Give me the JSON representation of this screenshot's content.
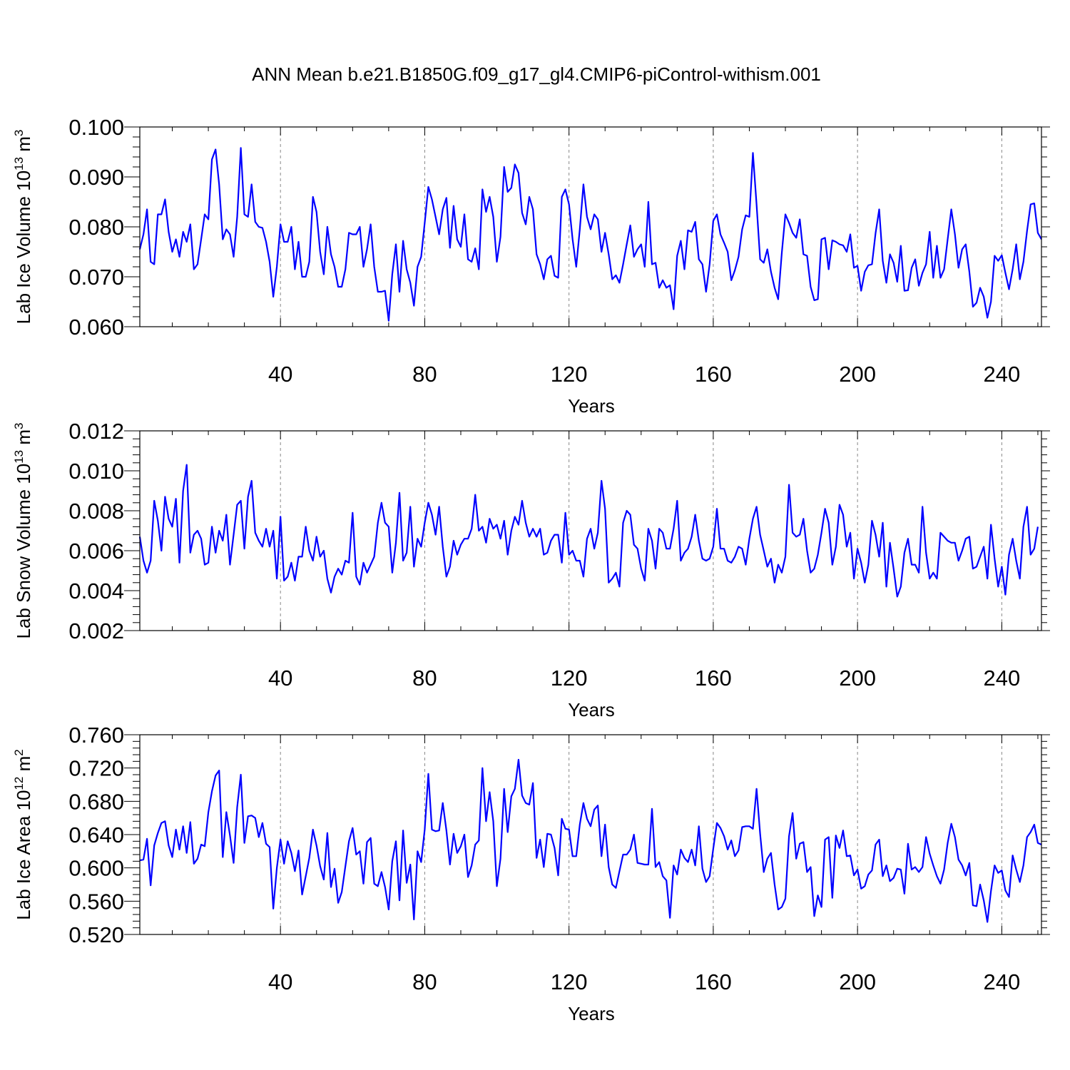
{
  "figure_title": "ANN Mean b.e21.B1850G.f09_g17_gl4.CMIP6-piControl-withism.001",
  "colors": {
    "series": "#0000ff",
    "grid": "#888888",
    "axes": "#000000"
  },
  "chart_data": [
    {
      "type": "line",
      "title": "",
      "xlabel": "Years",
      "ylabel": "Lab Ice Volume 10",
      "ylabel_exponent": "13",
      "ylabel_unit": " m",
      "ylabel_unit_exponent": "3",
      "xlim": [
        1,
        251
      ],
      "ylim": [
        0.06,
        0.1
      ],
      "x_ticks": [
        40,
        80,
        120,
        160,
        200,
        240
      ],
      "y_ticks": [
        "0.060",
        "0.070",
        "0.080",
        "0.090",
        "0.100"
      ],
      "grid": "vertical dashed at labeled x ticks",
      "x_start": 1,
      "series": [
        {
          "values": [
            0.0755,
            0.0785,
            0.0835,
            0.073,
            0.0725,
            0.0825,
            0.0825,
            0.0855,
            0.079,
            0.075,
            0.0775,
            0.074,
            0.079,
            0.077,
            0.0805,
            0.0715,
            0.0725,
            0.0775,
            0.0825,
            0.0815,
            0.0935,
            0.0955,
            0.0885,
            0.0775,
            0.0795,
            0.0785,
            0.074,
            0.082,
            0.0958,
            0.0825,
            0.082,
            0.0885,
            0.081,
            0.08,
            0.0798,
            0.077,
            0.073,
            0.066,
            0.072,
            0.0805,
            0.077,
            0.077,
            0.08,
            0.0715,
            0.077,
            0.07,
            0.07,
            0.073,
            0.086,
            0.083,
            0.075,
            0.0705,
            0.08,
            0.0745,
            0.072,
            0.068,
            0.068,
            0.0715,
            0.0788,
            0.0785,
            0.0785,
            0.08,
            0.072,
            0.0755,
            0.0805,
            0.072,
            0.067,
            0.067,
            0.0672,
            0.0612,
            0.0705,
            0.0765,
            0.067,
            0.0772,
            0.0715,
            0.0688,
            0.0642,
            0.072,
            0.074,
            0.0808,
            0.088,
            0.0855,
            0.082,
            0.0785,
            0.0835,
            0.0858,
            0.0758,
            0.0842,
            0.0775,
            0.076,
            0.0825,
            0.0735,
            0.073,
            0.0757,
            0.0715,
            0.0875,
            0.083,
            0.086,
            0.082,
            0.073,
            0.078,
            0.092,
            0.087,
            0.0878,
            0.0925,
            0.0908,
            0.0828,
            0.0805,
            0.086,
            0.0835,
            0.0745,
            0.0725,
            0.0695,
            0.0735,
            0.0742,
            0.0702,
            0.0698,
            0.086,
            0.0875,
            0.0845,
            0.0775,
            0.072,
            0.0795,
            0.0885,
            0.082,
            0.0795,
            0.0825,
            0.0815,
            0.075,
            0.0788,
            0.0745,
            0.0695,
            0.0703,
            0.0688,
            0.0725,
            0.0765,
            0.0803,
            0.074,
            0.0755,
            0.0765,
            0.072,
            0.085,
            0.0725,
            0.0728,
            0.0678,
            0.0693,
            0.0678,
            0.0683,
            0.0635,
            0.0742,
            0.0772,
            0.0715,
            0.0793,
            0.079,
            0.081,
            0.0735,
            0.0725,
            0.067,
            0.0725,
            0.0812,
            0.0825,
            0.0785,
            0.0768,
            0.075,
            0.0693,
            0.0713,
            0.074,
            0.0795,
            0.0823,
            0.082,
            0.0948,
            0.0845,
            0.0735,
            0.0728,
            0.0755,
            0.071,
            0.0678,
            0.0655,
            0.0748,
            0.0825,
            0.0808,
            0.0788,
            0.0778,
            0.0815,
            0.0745,
            0.0742,
            0.068,
            0.0653,
            0.0655,
            0.0775,
            0.0778,
            0.0715,
            0.0773,
            0.077,
            0.0765,
            0.0763,
            0.075,
            0.0785,
            0.0718,
            0.0722,
            0.0672,
            0.071,
            0.0723,
            0.0725,
            0.0787,
            0.0835,
            0.0732,
            0.0688,
            0.0745,
            0.0728,
            0.069,
            0.0762,
            0.0672,
            0.0673,
            0.0718,
            0.0735,
            0.0682,
            0.0708,
            0.0725,
            0.079,
            0.0698,
            0.0762,
            0.0698,
            0.0715,
            0.0775,
            0.0835,
            0.0785,
            0.0718,
            0.0755,
            0.0765,
            0.071,
            0.064,
            0.0648,
            0.0678,
            0.066,
            0.0618,
            0.065,
            0.0742,
            0.0732,
            0.0743,
            0.0708,
            0.0675,
            0.0715,
            0.0765,
            0.0695,
            0.073,
            0.0792,
            0.0845,
            0.0847,
            0.0788,
            0.0775
          ]
        }
      ]
    },
    {
      "type": "line",
      "title": "",
      "xlabel": "Years",
      "ylabel": "Lab Snow Volume 10",
      "ylabel_exponent": "13",
      "ylabel_unit": " m",
      "ylabel_unit_exponent": "3",
      "xlim": [
        1,
        251
      ],
      "ylim": [
        0.002,
        0.012
      ],
      "x_ticks": [
        40,
        80,
        120,
        160,
        200,
        240
      ],
      "y_ticks": [
        "0.002",
        "0.004",
        "0.006",
        "0.008",
        "0.010",
        "0.012"
      ],
      "grid": "vertical dashed at labeled x ticks",
      "x_start": 1,
      "series": [
        {
          "values": [
            0.0067,
            0.0055,
            0.0049,
            0.0055,
            0.0085,
            0.0075,
            0.006,
            0.0087,
            0.0076,
            0.0072,
            0.0086,
            0.0054,
            0.009,
            0.0103,
            0.0059,
            0.0068,
            0.007,
            0.0066,
            0.0053,
            0.0054,
            0.0072,
            0.0059,
            0.007,
            0.0065,
            0.0078,
            0.0053,
            0.0068,
            0.0083,
            0.0085,
            0.0061,
            0.0087,
            0.0095,
            0.0069,
            0.0065,
            0.0062,
            0.0071,
            0.0062,
            0.007,
            0.0046,
            0.0077,
            0.0045,
            0.0047,
            0.0054,
            0.0045,
            0.0057,
            0.0057,
            0.0072,
            0.006,
            0.0055,
            0.0067,
            0.0057,
            0.006,
            0.0046,
            0.0039,
            0.0047,
            0.0051,
            0.0048,
            0.0055,
            0.0054,
            0.0079,
            0.0047,
            0.0043,
            0.0054,
            0.0049,
            0.0053,
            0.0057,
            0.0074,
            0.0084,
            0.0074,
            0.0072,
            0.0049,
            0.0064,
            0.0089,
            0.0055,
            0.0059,
            0.0082,
            0.0052,
            0.0066,
            0.0062,
            0.0074,
            0.0084,
            0.0078,
            0.0068,
            0.0082,
            0.0062,
            0.0047,
            0.0052,
            0.0065,
            0.0058,
            0.0063,
            0.0066,
            0.0066,
            0.0071,
            0.0088,
            0.007,
            0.0072,
            0.0064,
            0.0076,
            0.0071,
            0.0073,
            0.0066,
            0.0075,
            0.0058,
            0.007,
            0.0077,
            0.0073,
            0.0085,
            0.0074,
            0.0067,
            0.0071,
            0.0067,
            0.0071,
            0.0058,
            0.0059,
            0.0065,
            0.0068,
            0.0068,
            0.0054,
            0.0079,
            0.0058,
            0.006,
            0.0055,
            0.0055,
            0.0047,
            0.0066,
            0.0071,
            0.0061,
            0.0069,
            0.0095,
            0.0081,
            0.0044,
            0.0046,
            0.0049,
            0.0042,
            0.0074,
            0.008,
            0.0078,
            0.0063,
            0.0061,
            0.0051,
            0.0045,
            0.0071,
            0.0065,
            0.0051,
            0.0071,
            0.0069,
            0.0061,
            0.0061,
            0.0071,
            0.0085,
            0.0055,
            0.0059,
            0.0061,
            0.0067,
            0.0078,
            0.0065,
            0.0056,
            0.0055,
            0.0056,
            0.0062,
            0.0081,
            0.0061,
            0.0061,
            0.0055,
            0.0054,
            0.0057,
            0.0062,
            0.0061,
            0.0053,
            0.0066,
            0.0076,
            0.0082,
            0.0068,
            0.006,
            0.0052,
            0.0056,
            0.0044,
            0.0053,
            0.0049,
            0.0057,
            0.0093,
            0.0069,
            0.0067,
            0.0068,
            0.0076,
            0.006,
            0.0049,
            0.0051,
            0.0058,
            0.0069,
            0.0081,
            0.0074,
            0.0053,
            0.0062,
            0.0083,
            0.0078,
            0.0062,
            0.0069,
            0.0046,
            0.0061,
            0.0054,
            0.0044,
            0.0053,
            0.0075,
            0.0068,
            0.0057,
            0.0074,
            0.0042,
            0.0064,
            0.0051,
            0.0037,
            0.0042,
            0.0059,
            0.0066,
            0.0053,
            0.0053,
            0.0049,
            0.0082,
            0.0059,
            0.0046,
            0.0049,
            0.0046,
            0.0069,
            0.0067,
            0.0065,
            0.0064,
            0.0064,
            0.0055,
            0.006,
            0.0066,
            0.0067,
            0.0051,
            0.0052,
            0.0057,
            0.0062,
            0.0046,
            0.0073,
            0.0056,
            0.0042,
            0.0052,
            0.0038,
            0.0058,
            0.0066,
            0.0055,
            0.0046,
            0.0072,
            0.0082,
            0.0058,
            0.0061,
            0.0072
          ]
        }
      ]
    },
    {
      "type": "line",
      "title": "",
      "xlabel": "Years",
      "ylabel": "Lab Ice Area 10",
      "ylabel_exponent": "12",
      "ylabel_unit": " m",
      "ylabel_unit_exponent": "2",
      "xlim": [
        1,
        251
      ],
      "ylim": [
        0.52,
        0.76
      ],
      "x_ticks": [
        40,
        80,
        120,
        160,
        200,
        240
      ],
      "y_ticks": [
        "0.520",
        "0.560",
        "0.600",
        "0.640",
        "0.680",
        "0.720",
        "0.760"
      ],
      "grid": "vertical dashed at labeled x ticks",
      "x_start": 1,
      "series": [
        {
          "values": [
            0.609,
            0.61,
            0.635,
            0.579,
            0.627,
            0.642,
            0.654,
            0.656,
            0.627,
            0.613,
            0.646,
            0.622,
            0.65,
            0.618,
            0.655,
            0.605,
            0.611,
            0.628,
            0.626,
            0.667,
            0.692,
            0.711,
            0.717,
            0.613,
            0.667,
            0.639,
            0.606,
            0.673,
            0.712,
            0.63,
            0.662,
            0.663,
            0.66,
            0.637,
            0.654,
            0.629,
            0.625,
            0.551,
            0.6,
            0.634,
            0.605,
            0.632,
            0.618,
            0.596,
            0.621,
            0.568,
            0.59,
            0.612,
            0.646,
            0.627,
            0.602,
            0.586,
            0.642,
            0.577,
            0.599,
            0.558,
            0.571,
            0.602,
            0.632,
            0.648,
            0.616,
            0.62,
            0.581,
            0.631,
            0.636,
            0.581,
            0.578,
            0.595,
            0.577,
            0.55,
            0.608,
            0.632,
            0.561,
            0.645,
            0.582,
            0.604,
            0.538,
            0.62,
            0.607,
            0.646,
            0.713,
            0.646,
            0.644,
            0.645,
            0.678,
            0.645,
            0.604,
            0.641,
            0.618,
            0.626,
            0.64,
            0.589,
            0.603,
            0.628,
            0.633,
            0.72,
            0.656,
            0.691,
            0.656,
            0.578,
            0.611,
            0.695,
            0.643,
            0.686,
            0.695,
            0.73,
            0.687,
            0.678,
            0.676,
            0.702,
            0.612,
            0.634,
            0.601,
            0.641,
            0.64,
            0.624,
            0.591,
            0.659,
            0.647,
            0.646,
            0.614,
            0.614,
            0.652,
            0.678,
            0.659,
            0.65,
            0.67,
            0.675,
            0.614,
            0.652,
            0.601,
            0.58,
            0.576,
            0.596,
            0.616,
            0.616,
            0.622,
            0.64,
            0.606,
            0.605,
            0.604,
            0.604,
            0.671,
            0.601,
            0.607,
            0.59,
            0.585,
            0.54,
            0.603,
            0.592,
            0.622,
            0.612,
            0.607,
            0.622,
            0.603,
            0.65,
            0.599,
            0.583,
            0.59,
            0.623,
            0.654,
            0.648,
            0.638,
            0.622,
            0.633,
            0.614,
            0.621,
            0.649,
            0.65,
            0.65,
            0.647,
            0.695,
            0.641,
            0.595,
            0.611,
            0.618,
            0.58,
            0.55,
            0.553,
            0.563,
            0.638,
            0.666,
            0.611,
            0.629,
            0.631,
            0.595,
            0.601,
            0.542,
            0.567,
            0.553,
            0.634,
            0.637,
            0.564,
            0.639,
            0.624,
            0.645,
            0.614,
            0.615,
            0.591,
            0.598,
            0.575,
            0.578,
            0.592,
            0.597,
            0.628,
            0.634,
            0.59,
            0.603,
            0.584,
            0.588,
            0.599,
            0.598,
            0.569,
            0.629,
            0.598,
            0.601,
            0.595,
            0.601,
            0.637,
            0.617,
            0.603,
            0.59,
            0.581,
            0.598,
            0.63,
            0.653,
            0.637,
            0.61,
            0.603,
            0.591,
            0.606,
            0.555,
            0.554,
            0.58,
            0.561,
            0.535,
            0.572,
            0.603,
            0.594,
            0.597,
            0.573,
            0.565,
            0.615,
            0.598,
            0.583,
            0.603,
            0.637,
            0.643,
            0.652,
            0.63,
            0.628
          ]
        }
      ]
    }
  ]
}
